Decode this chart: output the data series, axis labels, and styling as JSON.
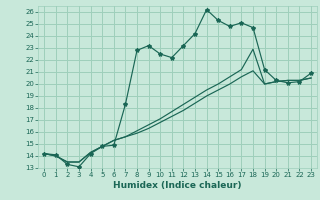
{
  "xlabel": "Humidex (Indice chaleur)",
  "xlim": [
    -0.5,
    23.5
  ],
  "ylim": [
    13,
    26.5
  ],
  "yticks": [
    13,
    14,
    15,
    16,
    17,
    18,
    19,
    20,
    21,
    22,
    23,
    24,
    25,
    26
  ],
  "xticks": [
    0,
    1,
    2,
    3,
    4,
    5,
    6,
    7,
    8,
    9,
    10,
    11,
    12,
    13,
    14,
    15,
    16,
    17,
    18,
    19,
    20,
    21,
    22,
    23
  ],
  "background_color": "#c8e8da",
  "grid_color": "#9ecfbb",
  "line_color": "#1a6655",
  "series1": [
    14.2,
    14.1,
    13.3,
    13.1,
    14.2,
    14.8,
    14.9,
    18.3,
    22.8,
    23.2,
    22.5,
    22.2,
    23.2,
    24.2,
    26.2,
    25.3,
    24.8,
    25.1,
    24.7,
    21.2,
    20.3,
    20.1,
    20.2,
    20.9
  ],
  "series2": [
    14.2,
    14.0,
    13.5,
    13.5,
    14.3,
    14.8,
    15.3,
    15.6,
    15.9,
    16.3,
    16.8,
    17.3,
    17.8,
    18.4,
    19.0,
    19.5,
    20.0,
    20.6,
    21.1,
    20.0,
    20.2,
    20.3,
    20.3,
    20.5
  ],
  "series3": [
    14.2,
    14.0,
    13.5,
    13.5,
    14.3,
    14.8,
    15.3,
    15.6,
    16.1,
    16.6,
    17.1,
    17.7,
    18.3,
    18.9,
    19.5,
    20.0,
    20.6,
    21.2,
    22.9,
    20.0,
    20.2,
    20.3,
    20.3,
    20.5
  ]
}
